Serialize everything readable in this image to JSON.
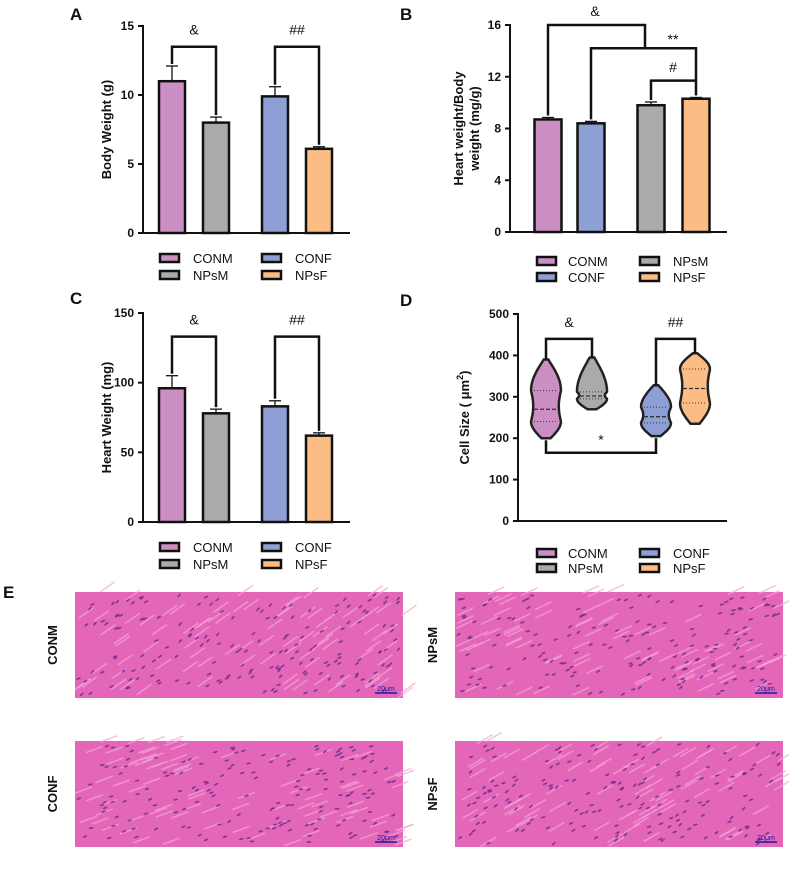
{
  "chart_data": [
    {
      "panel": "A",
      "type": "bar",
      "ylabel": "Body Weight (g)",
      "ylim": [
        0,
        15
      ],
      "yticks": [
        0,
        5,
        10,
        15
      ],
      "categories": [
        "CONM",
        "NPsM",
        "CONF",
        "NPsF"
      ],
      "values": [
        11.0,
        8.0,
        9.9,
        6.1
      ],
      "errors": [
        1.1,
        0.4,
        0.7,
        0.15
      ],
      "colors": [
        "#cc8fc4",
        "#aaaaaa",
        "#8e9fd6",
        "#fbbd84"
      ],
      "legend": [
        "CONM",
        "CONF",
        "NPsM",
        "NPsF"
      ],
      "annotations": [
        {
          "label": "&",
          "between": [
            "CONM",
            "NPsM"
          ]
        },
        {
          "label": "##",
          "between": [
            "CONF",
            "NPsF"
          ]
        }
      ]
    },
    {
      "panel": "B",
      "type": "bar",
      "ylabel": "Heart weight/Body weight (mg/g)",
      "ylabel_lines": [
        "Heart weight/Body",
        "weight (mg/g)"
      ],
      "ylim": [
        0,
        16
      ],
      "yticks": [
        0,
        4,
        8,
        12,
        16
      ],
      "categories": [
        "CONM",
        "CONF",
        "NPsM",
        "NPsF"
      ],
      "values": [
        8.7,
        8.4,
        9.8,
        10.3
      ],
      "errors": [
        0.15,
        0.15,
        0.25,
        0.1
      ],
      "colors": [
        "#cc8fc4",
        "#8e9fd6",
        "#aaaaaa",
        "#fbbd84"
      ],
      "legend": [
        "CONM",
        "NPsM",
        "CONF",
        "NPsF"
      ],
      "annotations": [
        {
          "label": "&",
          "between": [
            "CONM",
            "CONF vs NPsF"
          ]
        },
        {
          "label": "**",
          "between": [
            "CONF",
            "NPsF"
          ]
        },
        {
          "label": "#",
          "between": [
            "NPsM",
            "NPsF"
          ]
        }
      ]
    },
    {
      "panel": "C",
      "type": "bar",
      "ylabel": "Heart Weight (mg)",
      "ylim": [
        0,
        150
      ],
      "yticks": [
        0,
        50,
        100,
        150
      ],
      "categories": [
        "CONM",
        "NPsM",
        "CONF",
        "NPsF"
      ],
      "values": [
        96,
        78,
        83,
        62
      ],
      "errors": [
        9,
        3,
        4,
        2
      ],
      "colors": [
        "#cc8fc4",
        "#aaaaaa",
        "#8e9fd6",
        "#fbbd84"
      ],
      "legend": [
        "CONM",
        "CONF",
        "NPsM",
        "NPsF"
      ],
      "annotations": [
        {
          "label": "&",
          "between": [
            "CONM",
            "NPsM"
          ]
        },
        {
          "label": "##",
          "between": [
            "CONF",
            "NPsF"
          ]
        }
      ]
    },
    {
      "panel": "D",
      "type": "violin",
      "ylabel": "Cell Size ( μm²)",
      "ylabel_parts": [
        "Cell Size ( μm",
        "2",
        ")"
      ],
      "ylim": [
        0,
        500
      ],
      "yticks": [
        0,
        100,
        200,
        300,
        400,
        500
      ],
      "categories": [
        "CONM",
        "NPsM",
        "CONF",
        "NPsF"
      ],
      "min": [
        200,
        270,
        205,
        235
      ],
      "q1": [
        240,
        295,
        237,
        285
      ],
      "median": [
        270,
        302,
        252,
        320
      ],
      "q3": [
        315,
        312,
        275,
        367
      ],
      "max": [
        390,
        395,
        328,
        405
      ],
      "colors": [
        "#cc8fc4",
        "#aaaaaa",
        "#8e9fd6",
        "#fbbd84"
      ],
      "legend": [
        "CONM",
        "CONF",
        "NPsM",
        "NPsF"
      ],
      "annotations": [
        {
          "label": "&",
          "between": [
            "CONM",
            "NPsM"
          ]
        },
        {
          "label": "##",
          "between": [
            "CONF",
            "NPsF"
          ]
        },
        {
          "label": "*",
          "between": [
            "CONM",
            "CONF"
          ]
        }
      ]
    }
  ],
  "histology": {
    "panel": "E",
    "images": [
      {
        "label": "CONM",
        "scale": "20μm"
      },
      {
        "label": "NPsM",
        "scale": "20μm"
      },
      {
        "label": "CONF",
        "scale": "20μm"
      },
      {
        "label": "NPsF",
        "scale": "20μm"
      }
    ],
    "stain_color": "#e466b8",
    "nucleus_color": "#6a2a8a"
  }
}
